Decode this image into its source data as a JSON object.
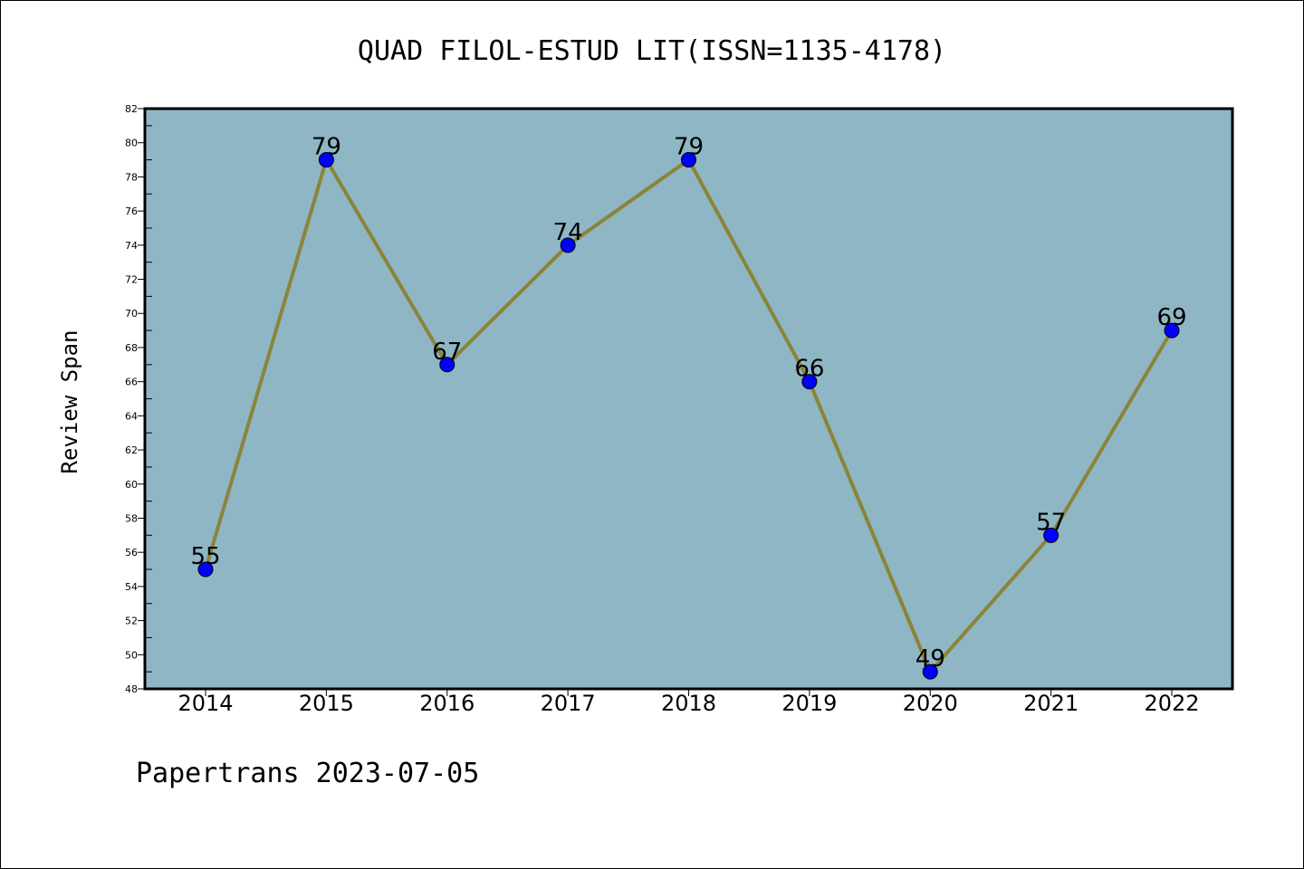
{
  "chart_data": {
    "type": "line",
    "title": "QUAD FILOL-ESTUD LIT(ISSN=1135-4178)",
    "xlabel": "",
    "ylabel": "Review Span",
    "categories": [
      "2014",
      "2015",
      "2016",
      "2017",
      "2018",
      "2019",
      "2020",
      "2021",
      "2022"
    ],
    "series": [
      {
        "values": [
          55,
          79,
          67,
          74,
          79,
          66,
          49,
          57,
          69
        ]
      }
    ],
    "ylim": [
      48,
      82
    ],
    "yticks": [
      48,
      50,
      52,
      54,
      56,
      58,
      60,
      62,
      64,
      66,
      68,
      70,
      72,
      74,
      76,
      78,
      80,
      82
    ],
    "grid": false,
    "legend": "none",
    "colors": {
      "plot_background": "#8fb6c4",
      "line": "#8b8438",
      "marker": "#0000ff"
    }
  },
  "footer": "Papertrans 2023-07-05"
}
